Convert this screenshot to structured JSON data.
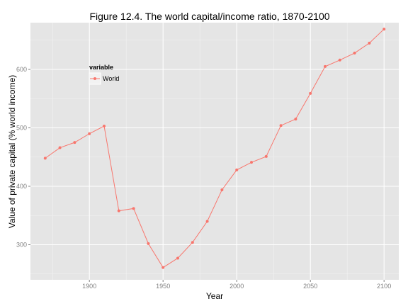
{
  "chart_data": {
    "type": "line",
    "title": "Figure 12.4. The world capital/income ratio, 1870-2100",
    "xlabel": "Year",
    "ylabel": "Value of private capital (% world income)",
    "xlim": [
      1860,
      2110
    ],
    "ylim": [
      240,
      680
    ],
    "x_ticks": [
      1900,
      1950,
      2000,
      2050,
      2100
    ],
    "y_ticks": [
      300,
      400,
      500,
      600
    ],
    "x": [
      1870,
      1880,
      1890,
      1900,
      1910,
      1920,
      1930,
      1940,
      1950,
      1960,
      1970,
      1980,
      1990,
      2000,
      2010,
      2020,
      2030,
      2040,
      2050,
      2060,
      2070,
      2080,
      2090,
      2100
    ],
    "series": [
      {
        "name": "World",
        "color": "#f8766d",
        "values": [
          448,
          466,
          475,
          490,
          503,
          358,
          362,
          302,
          261,
          277,
          304,
          340,
          394,
          428,
          441,
          451,
          504,
          515,
          559,
          605,
          616,
          628,
          645,
          669
        ]
      }
    ],
    "grid": true,
    "legend": {
      "title": "variable",
      "position": "top-left"
    },
    "panel_background": "#e5e5e5",
    "grid_color": "#ffffff"
  }
}
